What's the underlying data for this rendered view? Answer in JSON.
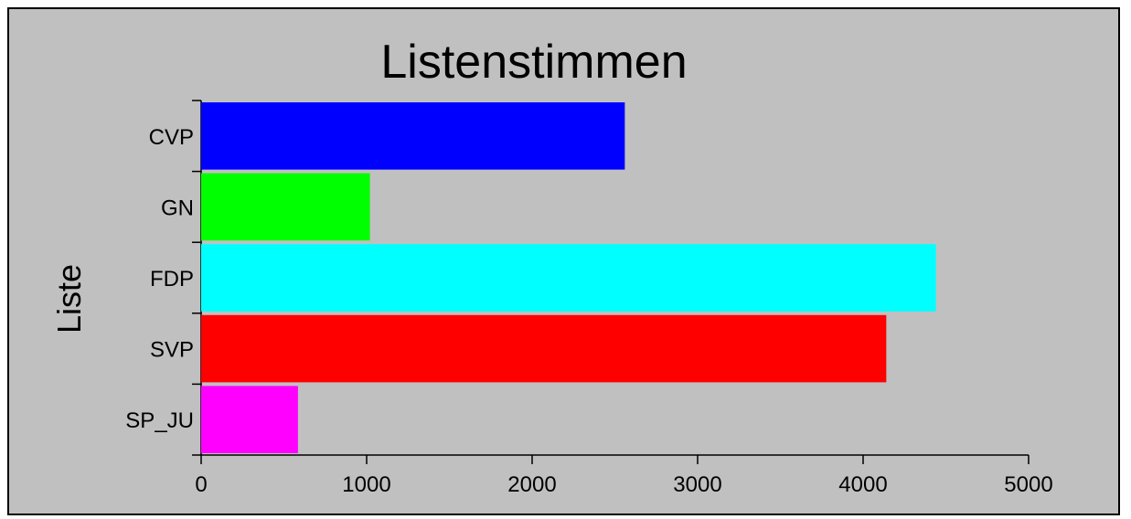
{
  "chart_data": {
    "type": "bar",
    "orientation": "horizontal",
    "title": "Listenstimmen",
    "xlabel": "",
    "ylabel": "Liste",
    "categories": [
      "CVP",
      "GN",
      "FDP",
      "SVP",
      "SP_JU"
    ],
    "values": [
      2560,
      1020,
      4440,
      4140,
      585
    ],
    "colors": [
      "#0000ff",
      "#00ff00",
      "#00ffff",
      "#ff0000",
      "#ff00ff"
    ],
    "xlim": [
      0,
      5000
    ],
    "xticks": [
      0,
      1000,
      2000,
      3000,
      4000,
      5000
    ],
    "xtick_labels": [
      "0",
      "1000",
      "2000",
      "3000",
      "4000",
      "5000"
    ],
    "grid": false,
    "legend": "none",
    "background": "#c0c0c0"
  }
}
